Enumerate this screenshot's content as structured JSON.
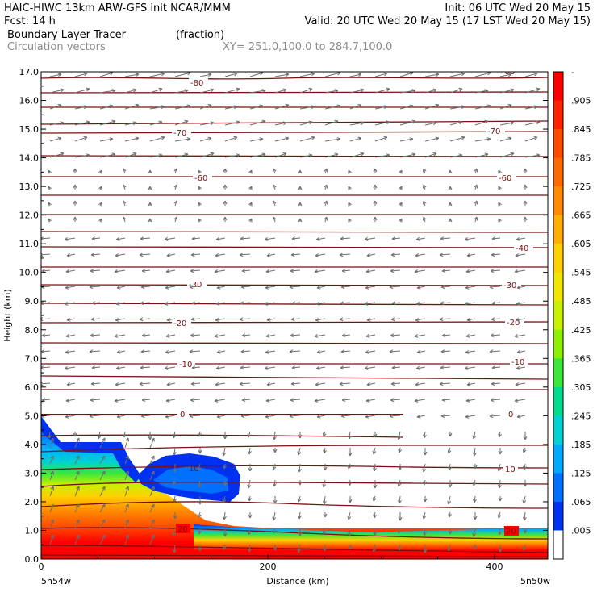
{
  "header": {
    "line1_left": "HAIC-HIWC 13km ARW-GFS init   NCAR/MMM",
    "line1_right": "Init: 06 UTC Wed 20 May 15",
    "line2_left": "Fcst:    14 h",
    "line2_right": "Valid: 20 UTC Wed 20 May 15 (17 LST Wed 20 May 15)",
    "line3_field": "Boundary Layer Tracer",
    "line3_units": "(fraction)",
    "line4_vectors": "Circulation vectors",
    "line4_xy": "XY= 251.0,100.0 to 284.7,100.0"
  },
  "chart_data": {
    "type": "heatmap",
    "xlabel": "Distance (km)",
    "ylabel": "Height (km)",
    "xlim": [
      0,
      447
    ],
    "ylim": [
      0,
      17
    ],
    "x_ticks": [
      "0",
      "200",
      "400"
    ],
    "y_ticks": [
      "0.0",
      "1.0",
      "2.0",
      "3.0",
      "4.0",
      "5.0",
      "6.0",
      "7.0",
      "8.0",
      "9.0",
      "10.0",
      "11.0",
      "12.0",
      "13.0",
      "14.0",
      "15.0",
      "16.0",
      "17.0"
    ],
    "x_endpoints": {
      "left": "5n54w",
      "right": "5n50w"
    },
    "colorbar": {
      "labels": [
        "-",
        ".905",
        ".845",
        ".785",
        ".725",
        ".665",
        ".605",
        ".545",
        ".485",
        ".425",
        ".365",
        ".305",
        ".245",
        ".185",
        ".125",
        ".065",
        ".005"
      ],
      "colors": [
        "#ff0000",
        "#ff2200",
        "#ff4800",
        "#ff6a00",
        "#ff8c00",
        "#ffae00",
        "#ffd000",
        "#f0e600",
        "#c8f000",
        "#8cf000",
        "#3ce63c",
        "#00dc8c",
        "#00d2d2",
        "#00aaff",
        "#0070ff",
        "#0030f0",
        "#ffffff"
      ]
    },
    "temperature_contours": [
      {
        "label": "20",
        "height_km": 1.0
      },
      {
        "label": "10",
        "height_km": 3.1
      },
      {
        "label": "0",
        "height_km": 5.0
      },
      {
        "label": "-10",
        "height_km": 6.9
      },
      {
        "label": "-20",
        "height_km": 8.3
      },
      {
        "label": "-30",
        "height_km": 9.4
      },
      {
        "label": "-40",
        "height_km": 10.9
      },
      {
        "label": "-60",
        "height_km": 13.3
      },
      {
        "label": "-70",
        "height_km": 15.0
      },
      {
        "label": "-80",
        "height_km": 16.7
      }
    ]
  }
}
